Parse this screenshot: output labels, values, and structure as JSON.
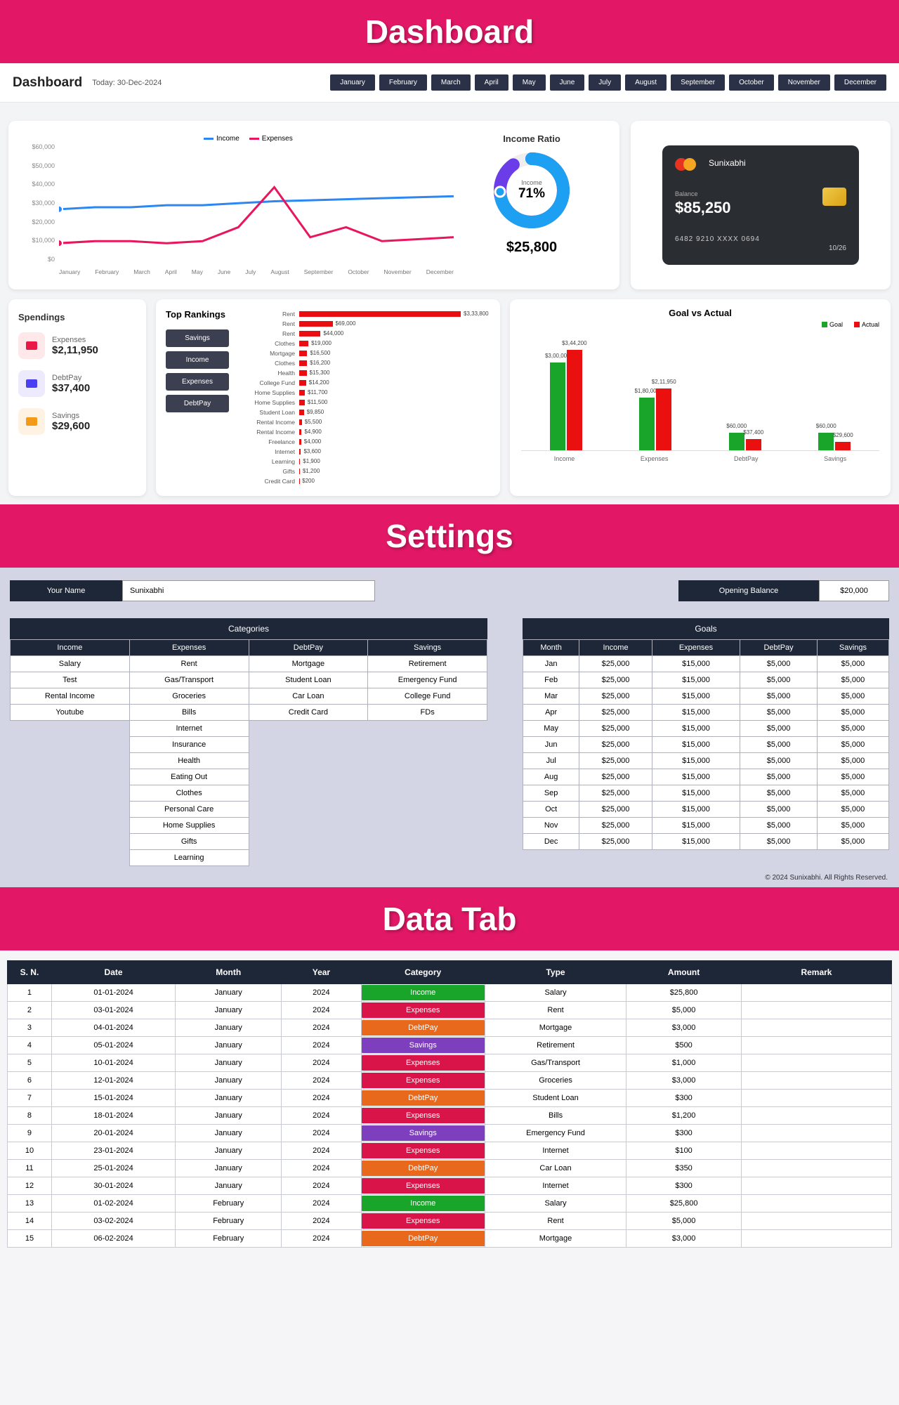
{
  "banners": {
    "dashboard": "Dashboard",
    "settings": "Settings",
    "datatab": "Data Tab"
  },
  "banner_color": "#e21866",
  "topbar": {
    "title": "Dashboard",
    "today_label": "Today: 30-Dec-2024",
    "months": [
      "January",
      "February",
      "March",
      "April",
      "May",
      "June",
      "July",
      "August",
      "September",
      "October",
      "November",
      "December"
    ]
  },
  "line_chart": {
    "legend": [
      {
        "label": "Income",
        "color": "#2d87f3"
      },
      {
        "label": "Expenses",
        "color": "#e8155f"
      }
    ],
    "y_ticks": [
      "$60,000",
      "$50,000",
      "$40,000",
      "$30,000",
      "$20,000",
      "$10,000",
      "$0"
    ],
    "x_ticks": [
      "January",
      "February",
      "March",
      "April",
      "May",
      "June",
      "July",
      "August",
      "September",
      "October",
      "November",
      "December"
    ],
    "income_points": [
      27,
      28,
      28,
      29,
      29,
      30,
      31,
      31.5,
      32,
      32.5,
      33,
      33.5
    ],
    "expense_points": [
      10,
      11,
      11,
      10,
      11,
      18,
      38,
      13,
      18,
      11,
      12,
      13
    ],
    "y_max": 60
  },
  "income_ratio": {
    "title": "Income Ratio",
    "center_label": "Income",
    "percent": "71%",
    "amount": "$25,800",
    "ring_primary": "#1da0f1",
    "ring_secondary": "#6a3de8"
  },
  "credit_card": {
    "name": "Sunixabhi",
    "balance_label": "Balance",
    "balance": "$85,250",
    "number": "6482 9210 XXXX 0694",
    "expiry": "10/26",
    "logo_colors": [
      "#e63420",
      "#f6a522"
    ]
  },
  "spendings": {
    "title": "Spendings",
    "items": [
      {
        "icon_bg": "#fee8ea",
        "icon_fg": "#ea1847",
        "label": "Expenses",
        "value": "$2,11,950"
      },
      {
        "icon_bg": "#edeafe",
        "icon_fg": "#4a3ff2",
        "label": "DebtPay",
        "value": "$37,400"
      },
      {
        "icon_bg": "#fef2e3",
        "icon_fg": "#f39a18",
        "label": "Savings",
        "value": "$29,600"
      }
    ]
  },
  "rankings": {
    "title": "Top Rankings",
    "buttons": [
      "Savings",
      "Income",
      "Expenses",
      "DebtPay"
    ],
    "max": 333800,
    "rows": [
      {
        "label": "Rent",
        "value": 333800,
        "display": "$3,33,800"
      },
      {
        "label": "Rent",
        "value": 69000,
        "display": "$69,000"
      },
      {
        "label": "Rent",
        "value": 44000,
        "display": "$44,000"
      },
      {
        "label": "Clothes",
        "value": 19000,
        "display": "$19,000"
      },
      {
        "label": "Mortgage",
        "value": 16500,
        "display": "$16,500"
      },
      {
        "label": "Clothes",
        "value": 16200,
        "display": "$16,200"
      },
      {
        "label": "Health",
        "value": 15300,
        "display": "$15,300"
      },
      {
        "label": "College Fund",
        "value": 14200,
        "display": "$14,200"
      },
      {
        "label": "Home Supplies",
        "value": 11700,
        "display": "$11,700"
      },
      {
        "label": "Home Supplies",
        "value": 11500,
        "display": "$11,500"
      },
      {
        "label": "Student Loan",
        "value": 9850,
        "display": "$9,850"
      },
      {
        "label": "Rental Income",
        "value": 5500,
        "display": "$5,500"
      },
      {
        "label": "Rental Income",
        "value": 4900,
        "display": "$4,900"
      },
      {
        "label": "Freelance",
        "value": 4000,
        "display": "$4,000"
      },
      {
        "label": "Internet",
        "value": 3600,
        "display": "$3,600"
      },
      {
        "label": "Learning",
        "value": 1900,
        "display": "$1,900"
      },
      {
        "label": "Gifts",
        "value": 1200,
        "display": "$1,200"
      },
      {
        "label": "Credit Card",
        "value": 200,
        "display": "$200"
      }
    ]
  },
  "goal_chart": {
    "title": "Goal vs Actual",
    "legend": [
      {
        "label": "Goal",
        "color": "#18a52a"
      },
      {
        "label": "Actual",
        "color": "#ea1010"
      }
    ],
    "y_max": 360000,
    "groups": [
      {
        "label": "Income",
        "goal": 300000,
        "actual": 344200,
        "goal_display": "$3,00,000",
        "actual_display": "$3,44,200"
      },
      {
        "label": "Expenses",
        "goal": 180000,
        "actual": 211950,
        "goal_display": "$1,80,000",
        "actual_display": "$2,11,950"
      },
      {
        "label": "DebtPay",
        "goal": 60000,
        "actual": 37400,
        "goal_display": "$60,000",
        "actual_display": "$37,400"
      },
      {
        "label": "Savings",
        "goal": 60000,
        "actual": 29600,
        "goal_display": "$60,000",
        "actual_display": "$29,600"
      }
    ]
  },
  "settings": {
    "name_label": "Your Name",
    "name_value": "Sunixabhi",
    "balance_label": "Opening Balance",
    "balance_value": "$20,000",
    "categories_title": "Categories",
    "cat_headers": [
      "Income",
      "Expenses",
      "DebtPay",
      "Savings"
    ],
    "cat_rows": [
      [
        "Salary",
        "Rent",
        "Mortgage",
        "Retirement"
      ],
      [
        "Test",
        "Gas/Transport",
        "Student Loan",
        "Emergency Fund"
      ],
      [
        "Rental Income",
        "Groceries",
        "Car Loan",
        "College Fund"
      ],
      [
        "Youtube",
        "Bills",
        "Credit Card",
        "FDs"
      ],
      [
        "",
        "Internet",
        "",
        ""
      ],
      [
        "",
        "Insurance",
        "",
        ""
      ],
      [
        "",
        "Health",
        "",
        ""
      ],
      [
        "",
        "Eating Out",
        "",
        ""
      ],
      [
        "",
        "Clothes",
        "",
        ""
      ],
      [
        "",
        "Personal Care",
        "",
        ""
      ],
      [
        "",
        "Home Supplies",
        "",
        ""
      ],
      [
        "",
        "Gifts",
        "",
        ""
      ],
      [
        "",
        "Learning",
        "",
        ""
      ]
    ],
    "goals_title": "Goals",
    "goal_headers": [
      "Month",
      "Income",
      "Expenses",
      "DebtPay",
      "Savings"
    ],
    "goal_rows": [
      [
        "Jan",
        "$25,000",
        "$15,000",
        "$5,000",
        "$5,000"
      ],
      [
        "Feb",
        "$25,000",
        "$15,000",
        "$5,000",
        "$5,000"
      ],
      [
        "Mar",
        "$25,000",
        "$15,000",
        "$5,000",
        "$5,000"
      ],
      [
        "Apr",
        "$25,000",
        "$15,000",
        "$5,000",
        "$5,000"
      ],
      [
        "May",
        "$25,000",
        "$15,000",
        "$5,000",
        "$5,000"
      ],
      [
        "Jun",
        "$25,000",
        "$15,000",
        "$5,000",
        "$5,000"
      ],
      [
        "Jul",
        "$25,000",
        "$15,000",
        "$5,000",
        "$5,000"
      ],
      [
        "Aug",
        "$25,000",
        "$15,000",
        "$5,000",
        "$5,000"
      ],
      [
        "Sep",
        "$25,000",
        "$15,000",
        "$5,000",
        "$5,000"
      ],
      [
        "Oct",
        "$25,000",
        "$15,000",
        "$5,000",
        "$5,000"
      ],
      [
        "Nov",
        "$25,000",
        "$15,000",
        "$5,000",
        "$5,000"
      ],
      [
        "Dec",
        "$25,000",
        "$15,000",
        "$5,000",
        "$5,000"
      ]
    ],
    "copyright": "© 2024 Sunixabhi. All Rights Reserved."
  },
  "data_tab": {
    "headers": [
      "S. N.",
      "Date",
      "Month",
      "Year",
      "Category",
      "Type",
      "Amount",
      "Remark"
    ],
    "category_colors": {
      "Income": "#18a52a",
      "Expenses": "#d91448",
      "DebtPay": "#e8681c",
      "Savings": "#7e3fbf"
    },
    "rows": [
      {
        "sn": 1,
        "date": "01-01-2024",
        "month": "January",
        "year": "2024",
        "category": "Income",
        "type": "Salary",
        "amount": "$25,800",
        "remark": ""
      },
      {
        "sn": 2,
        "date": "03-01-2024",
        "month": "January",
        "year": "2024",
        "category": "Expenses",
        "type": "Rent",
        "amount": "$5,000",
        "remark": ""
      },
      {
        "sn": 3,
        "date": "04-01-2024",
        "month": "January",
        "year": "2024",
        "category": "DebtPay",
        "type": "Mortgage",
        "amount": "$3,000",
        "remark": ""
      },
      {
        "sn": 4,
        "date": "05-01-2024",
        "month": "January",
        "year": "2024",
        "category": "Savings",
        "type": "Retirement",
        "amount": "$500",
        "remark": ""
      },
      {
        "sn": 5,
        "date": "10-01-2024",
        "month": "January",
        "year": "2024",
        "category": "Expenses",
        "type": "Gas/Transport",
        "amount": "$1,000",
        "remark": ""
      },
      {
        "sn": 6,
        "date": "12-01-2024",
        "month": "January",
        "year": "2024",
        "category": "Expenses",
        "type": "Groceries",
        "amount": "$3,000",
        "remark": ""
      },
      {
        "sn": 7,
        "date": "15-01-2024",
        "month": "January",
        "year": "2024",
        "category": "DebtPay",
        "type": "Student Loan",
        "amount": "$300",
        "remark": ""
      },
      {
        "sn": 8,
        "date": "18-01-2024",
        "month": "January",
        "year": "2024",
        "category": "Expenses",
        "type": "Bills",
        "amount": "$1,200",
        "remark": ""
      },
      {
        "sn": 9,
        "date": "20-01-2024",
        "month": "January",
        "year": "2024",
        "category": "Savings",
        "type": "Emergency Fund",
        "amount": "$300",
        "remark": ""
      },
      {
        "sn": 10,
        "date": "23-01-2024",
        "month": "January",
        "year": "2024",
        "category": "Expenses",
        "type": "Internet",
        "amount": "$100",
        "remark": ""
      },
      {
        "sn": 11,
        "date": "25-01-2024",
        "month": "January",
        "year": "2024",
        "category": "DebtPay",
        "type": "Car Loan",
        "amount": "$350",
        "remark": ""
      },
      {
        "sn": 12,
        "date": "30-01-2024",
        "month": "January",
        "year": "2024",
        "category": "Expenses",
        "type": "Internet",
        "amount": "$300",
        "remark": ""
      },
      {
        "sn": 13,
        "date": "01-02-2024",
        "month": "February",
        "year": "2024",
        "category": "Income",
        "type": "Salary",
        "amount": "$25,800",
        "remark": ""
      },
      {
        "sn": 14,
        "date": "03-02-2024",
        "month": "February",
        "year": "2024",
        "category": "Expenses",
        "type": "Rent",
        "amount": "$5,000",
        "remark": ""
      },
      {
        "sn": 15,
        "date": "06-02-2024",
        "month": "February",
        "year": "2024",
        "category": "DebtPay",
        "type": "Mortgage",
        "amount": "$3,000",
        "remark": ""
      }
    ]
  }
}
